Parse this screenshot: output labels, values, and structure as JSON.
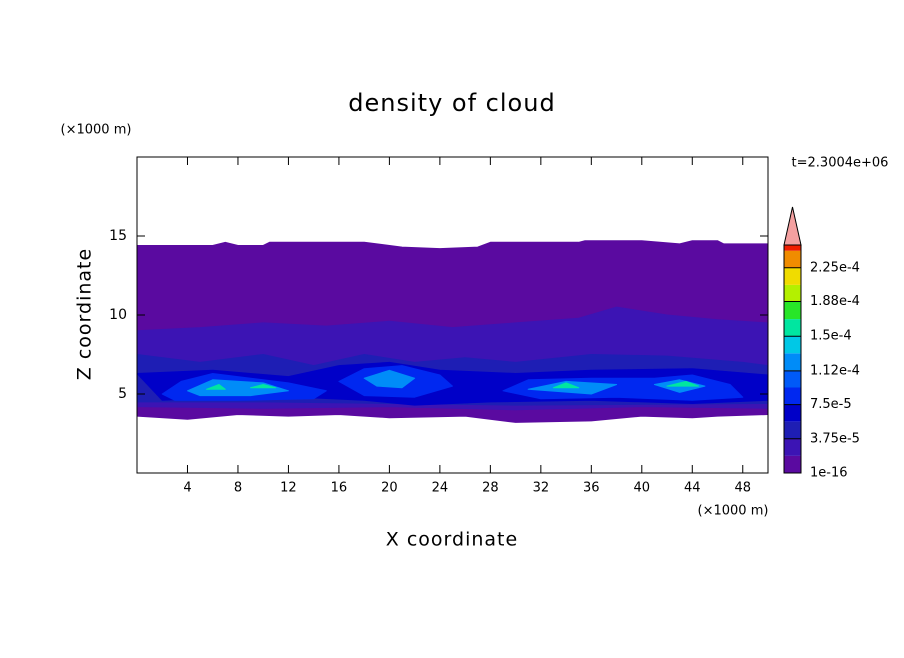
{
  "chart_data": {
    "type": "contour",
    "title": "density of cloud",
    "y_unit_label": "(×1000 m)",
    "x_unit_label": "(×1000 m)",
    "xlabel": "X coordinate",
    "ylabel": "Z coordinate",
    "time_label": "t=2.3004e+06",
    "xlim": [
      0,
      50
    ],
    "ylim": [
      0,
      20
    ],
    "xticks": [
      4,
      8,
      12,
      16,
      20,
      24,
      28,
      32,
      36,
      40,
      44,
      48
    ],
    "yticks": [
      5,
      10,
      15
    ],
    "colorbar": {
      "clim": [
        1e-16,
        0.00025
      ],
      "levels": [
        1e-16,
        1.875e-05,
        3.75e-05,
        5.625e-05,
        7.5e-05,
        9.375e-05,
        0.0001125,
        0.00013125,
        0.00015,
        0.00016875,
        0.0001875,
        0.00020625,
        0.000225,
        0.00024375
      ],
      "colors": [
        "#5a0aa0",
        "#3c14b4",
        "#1e1eb4",
        "#0000c8",
        "#0028f0",
        "#005af8",
        "#008cf8",
        "#00c8e6",
        "#00e6a0",
        "#28e628",
        "#b4f000",
        "#f0dc00",
        "#f08c00",
        "#f01e00"
      ],
      "extend_color": "#f4a0a0",
      "ticks": [
        {
          "value": 1e-16,
          "label": "1e-16"
        },
        {
          "value": 3.75e-05,
          "label": "3.75e-5"
        },
        {
          "value": 7.5e-05,
          "label": "7.5e-5"
        },
        {
          "value": 0.000112,
          "label": "1.12e-4"
        },
        {
          "value": 0.00015,
          "label": "1.5e-4"
        },
        {
          "value": 0.000188,
          "label": "1.88e-4"
        },
        {
          "value": 0.000225,
          "label": "2.25e-4"
        }
      ]
    },
    "regions": [
      {
        "value": 1e-16,
        "x": [
          0,
          6,
          7,
          8,
          10,
          10.5,
          18,
          21,
          24,
          27,
          28,
          35,
          35.5,
          40,
          43,
          44,
          46,
          46.5,
          50,
          50,
          46,
          44,
          40,
          36,
          30,
          26,
          20,
          16,
          12,
          8,
          4,
          0
        ],
        "z": [
          14.4,
          14.4,
          14.6,
          14.4,
          14.4,
          14.6,
          14.6,
          14.3,
          14.2,
          14.3,
          14.6,
          14.6,
          14.7,
          14.7,
          14.5,
          14.7,
          14.7,
          14.5,
          14.5,
          3.7,
          3.6,
          3.5,
          3.6,
          3.3,
          3.2,
          3.6,
          3.5,
          3.7,
          3.6,
          3.7,
          3.4,
          3.6
        ]
      },
      {
        "value": 1.875e-05,
        "x": [
          0,
          5,
          10,
          15,
          20,
          25,
          30,
          35,
          38,
          42,
          46,
          50,
          50,
          40,
          30,
          20,
          10,
          0
        ],
        "z": [
          9,
          9.2,
          9.5,
          9.3,
          9.6,
          9.2,
          9.5,
          9.8,
          10.5,
          10,
          9.7,
          9.5,
          4.1,
          4.2,
          4.0,
          4.2,
          4.1,
          4.2
        ]
      },
      {
        "value": 3.75e-05,
        "x": [
          0,
          5,
          10,
          14,
          18,
          22,
          26,
          30,
          36,
          42,
          48,
          50,
          50,
          30,
          10,
          0
        ],
        "z": [
          7.5,
          7,
          7.5,
          6.8,
          7.5,
          7,
          7.3,
          7,
          7.5,
          7.4,
          7,
          6.8,
          4.4,
          4.3,
          4.5,
          4.5
        ]
      },
      {
        "value": 5.625e-05,
        "x": [
          0,
          6,
          12,
          16,
          20,
          24,
          30,
          36,
          44,
          50,
          50,
          44,
          36,
          28,
          22,
          18,
          10,
          2
        ],
        "z": [
          6.3,
          6.5,
          6.1,
          6.8,
          7.0,
          6.5,
          6.3,
          6.5,
          6.6,
          6.2,
          4.6,
          4.4,
          4.6,
          4.5,
          4.3,
          4.6,
          4.9,
          4.6
        ]
      },
      {
        "value": 7.5e-05,
        "x": [
          2,
          3.5,
          6,
          9,
          12,
          15,
          14,
          8,
          3
        ],
        "z": [
          5,
          5.8,
          6.3,
          6.0,
          5.7,
          5.2,
          4.7,
          4.6,
          4.6
        ]
      },
      {
        "value": 7.5e-05,
        "x": [
          16,
          18,
          21,
          24,
          25,
          22,
          18
        ],
        "z": [
          5.8,
          6.6,
          6.8,
          6.2,
          5.5,
          4.8,
          4.9
        ]
      },
      {
        "value": 7.5e-05,
        "x": [
          29,
          31,
          36,
          41,
          44,
          47,
          48,
          44,
          38,
          32
        ],
        "z": [
          5.2,
          5.9,
          6.0,
          6.0,
          6.2,
          5.6,
          4.8,
          4.6,
          4.8,
          4.7
        ]
      },
      {
        "value": 0.0001125,
        "x": [
          4,
          6,
          10,
          12,
          9,
          5
        ],
        "z": [
          5.2,
          5.9,
          5.7,
          5.2,
          4.9,
          4.9
        ]
      },
      {
        "value": 0.0001125,
        "x": [
          18,
          20,
          22,
          21,
          19
        ],
        "z": [
          6,
          6.5,
          6,
          5.4,
          5.5
        ]
      },
      {
        "value": 0.0001125,
        "x": [
          31,
          34,
          38,
          36
        ],
        "z": [
          5.3,
          5.8,
          5.6,
          5.0
        ]
      },
      {
        "value": 0.0001125,
        "x": [
          41,
          43,
          45,
          43
        ],
        "z": [
          5.6,
          5.9,
          5.5,
          5.1
        ]
      },
      {
        "value": 0.00015,
        "x": [
          5.5,
          6.5,
          7
        ],
        "z": [
          5.3,
          5.6,
          5.3
        ]
      },
      {
        "value": 0.00015,
        "x": [
          9,
          10,
          11
        ],
        "z": [
          5.4,
          5.6,
          5.4
        ]
      },
      {
        "value": 0.00015,
        "x": [
          33,
          34,
          35
        ],
        "z": [
          5.4,
          5.7,
          5.4
        ]
      },
      {
        "value": 0.00015,
        "x": [
          42,
          43.5,
          44.5
        ],
        "z": [
          5.5,
          5.8,
          5.5
        ]
      }
    ]
  }
}
